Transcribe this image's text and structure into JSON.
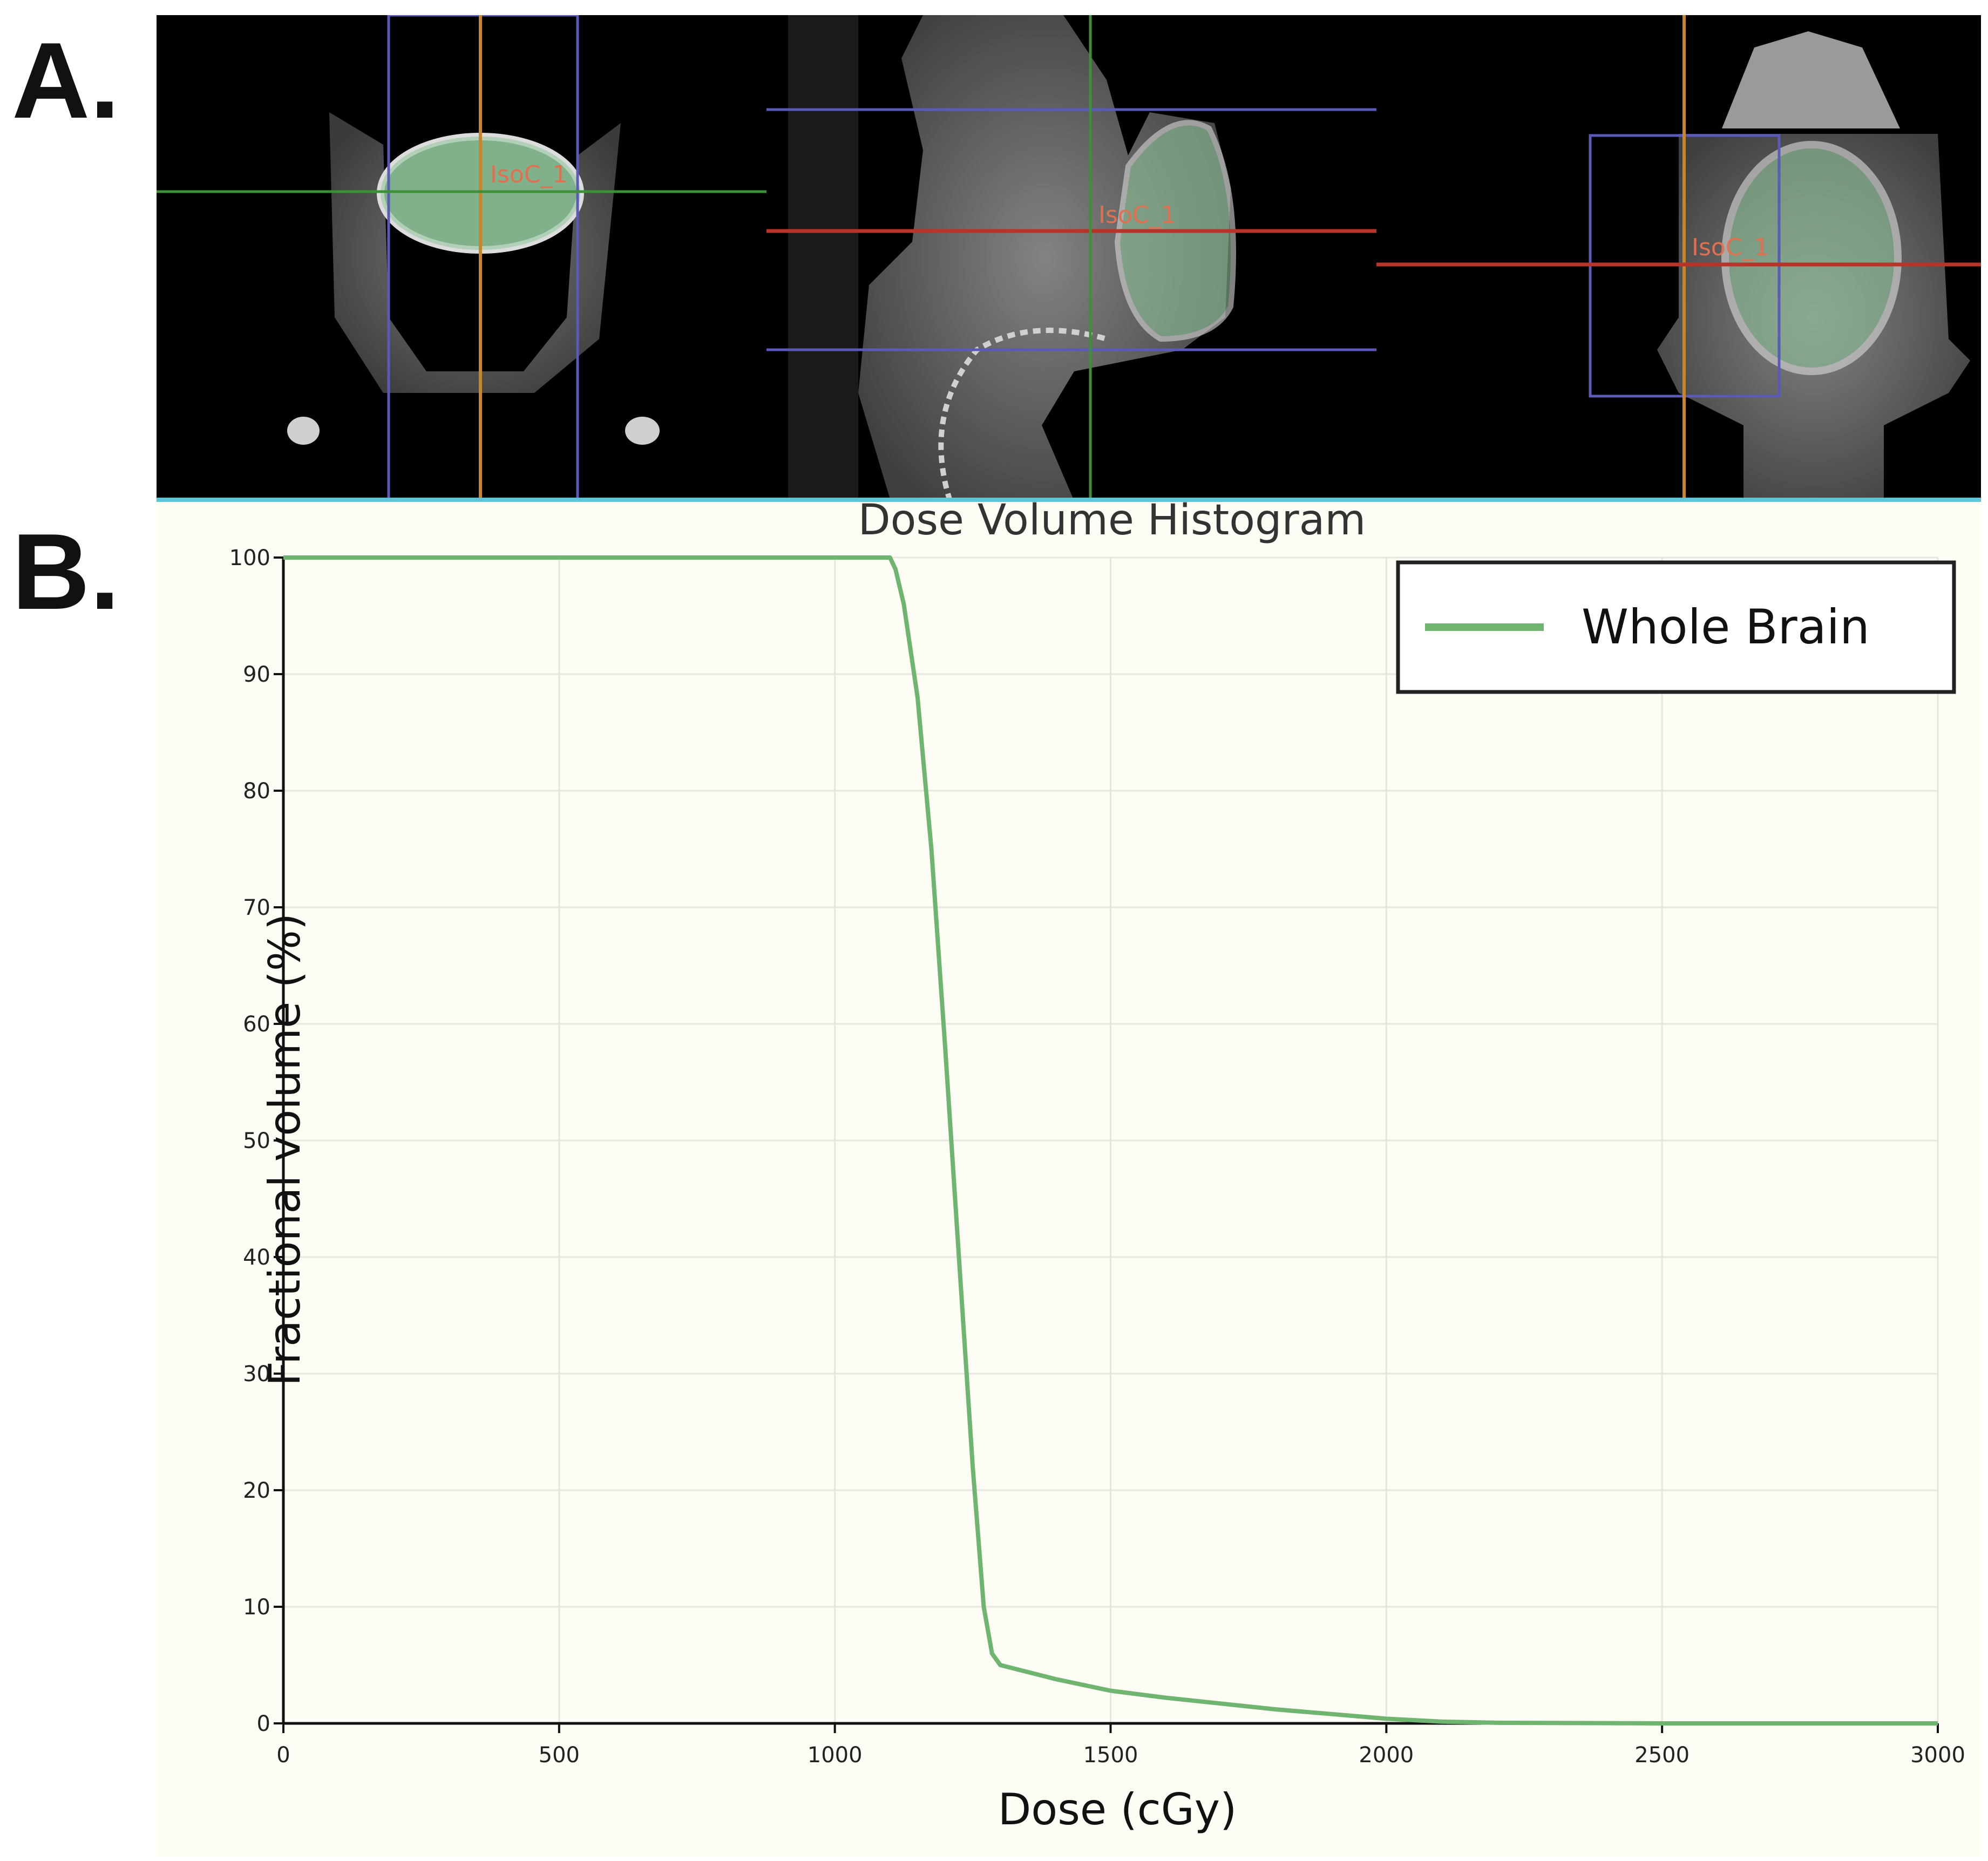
{
  "panels": {
    "a_label": "A.",
    "b_label": "B."
  },
  "ct_images": {
    "views": [
      {
        "name": "coronal",
        "marker_label": "IsoC_1"
      },
      {
        "name": "sagittal",
        "marker_label": "IsoC_1"
      },
      {
        "name": "axial",
        "marker_label": "IsoC_1"
      }
    ],
    "colors": {
      "crosshair_orange": "#c8862a",
      "crosshair_green": "#3f8f3a",
      "crosshair_red": "#b8342a",
      "bounding_box_blue": "#5a5ab8",
      "brain_contour": "#8fc49a"
    }
  },
  "chart_data": {
    "type": "line",
    "title": "Dose Volume Histogram",
    "xlabel": "Dose (cGy)",
    "ylabel": "Fractional volume (%)",
    "xlim": [
      0,
      3000
    ],
    "ylim": [
      0,
      100
    ],
    "xticks": [
      0,
      500,
      1000,
      1500,
      2000,
      2500,
      3000
    ],
    "yticks": [
      0,
      10,
      20,
      30,
      40,
      50,
      60,
      70,
      80,
      90,
      100
    ],
    "grid": true,
    "legend_position": "top-right",
    "colors": {
      "series": "#6fb46f",
      "background": "#fdfcf5"
    },
    "series": [
      {
        "name": "Whole Brain",
        "x": [
          0,
          1000,
          1100,
          1110,
          1125,
          1150,
          1175,
          1200,
          1225,
          1250,
          1270,
          1285,
          1300,
          1400,
          1500,
          1600,
          1700,
          1800,
          1900,
          2000,
          2100,
          2200,
          2500,
          3000
        ],
        "y": [
          100,
          100,
          100,
          99,
          96,
          88,
          75,
          58,
          40,
          22,
          10,
          6,
          5,
          3.8,
          2.8,
          2.2,
          1.7,
          1.2,
          0.8,
          0.4,
          0.15,
          0.05,
          0,
          0
        ]
      }
    ]
  }
}
